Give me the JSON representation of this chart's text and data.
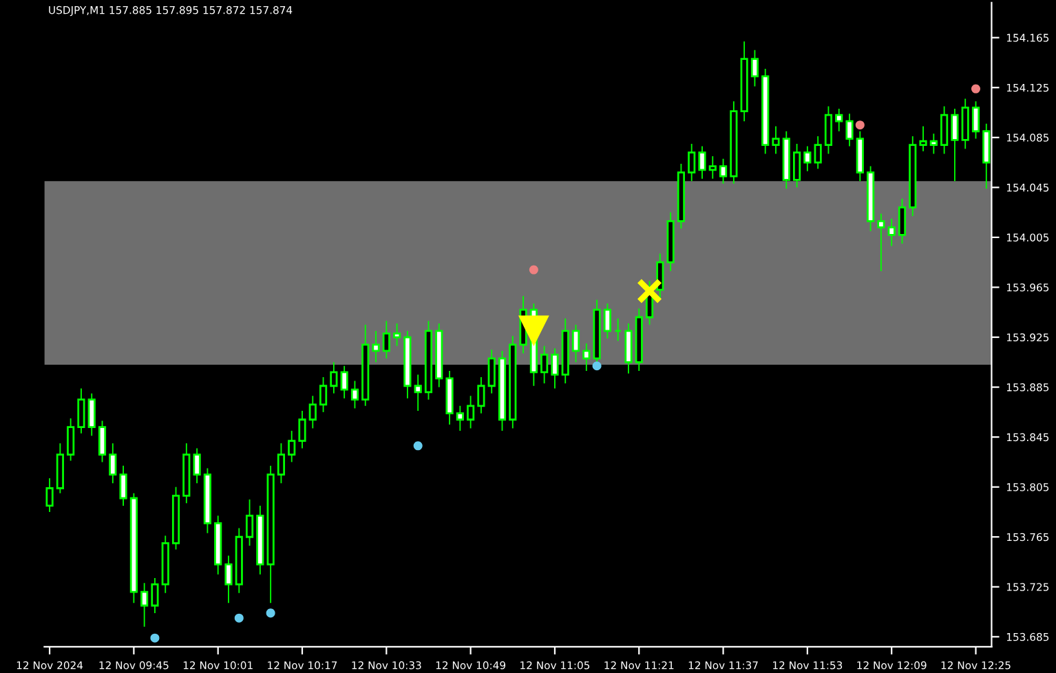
{
  "chart_data": {
    "type": "candlestick",
    "title": "USDJPY,M1 157.885 157.895 157.872 157.874",
    "color": "#00ff00",
    "categories": [
      "12 Nov 2024",
      null,
      null,
      null,
      null,
      null,
      null,
      null,
      "12 Nov 09:45",
      null,
      null,
      null,
      null,
      null,
      null,
      null,
      "12 Nov 10:01",
      null,
      null,
      null,
      null,
      null,
      null,
      null,
      "12 Nov 10:17",
      null,
      null,
      null,
      null,
      null,
      null,
      null,
      "12 Nov 10:33",
      null,
      null,
      null,
      null,
      null,
      null,
      null,
      "12 Nov 10:49",
      null,
      null,
      null,
      null,
      null,
      null,
      null,
      "12 Nov 11:05",
      null,
      null,
      null,
      null,
      null,
      null,
      null,
      "12 Nov 11:21",
      null,
      null,
      null,
      null,
      null,
      null,
      null,
      "12 Nov 11:37",
      null,
      null,
      null,
      null,
      null,
      null,
      null,
      "12 Nov 11:53",
      null,
      null,
      null,
      null,
      null,
      null,
      null,
      "12 Nov 12:09",
      null,
      null,
      null,
      null,
      null,
      null,
      null,
      "12 Nov 12:25",
      null
    ],
    "ohlc": [
      [
        153.79,
        153.812,
        153.785,
        153.804
      ],
      [
        153.804,
        153.84,
        153.8,
        153.831
      ],
      [
        153.831,
        153.86,
        153.826,
        153.853
      ],
      [
        153.853,
        153.884,
        153.848,
        153.875
      ],
      [
        153.875,
        153.88,
        153.846,
        153.853
      ],
      [
        153.853,
        153.858,
        153.825,
        153.831
      ],
      [
        153.831,
        153.84,
        153.808,
        153.815
      ],
      [
        153.815,
        153.822,
        153.79,
        153.796
      ],
      [
        153.796,
        153.8,
        153.712,
        153.721
      ],
      [
        153.721,
        153.728,
        153.693,
        153.71
      ],
      [
        153.71,
        153.732,
        153.704,
        153.727
      ],
      [
        153.727,
        153.766,
        153.72,
        153.76
      ],
      [
        153.76,
        153.805,
        153.755,
        153.798
      ],
      [
        153.798,
        153.84,
        153.792,
        153.831
      ],
      [
        153.831,
        153.836,
        153.808,
        153.815
      ],
      [
        153.815,
        153.82,
        153.768,
        153.776
      ],
      [
        153.776,
        153.782,
        153.735,
        153.743
      ],
      [
        153.743,
        153.75,
        153.712,
        153.727
      ],
      [
        153.727,
        153.772,
        153.72,
        153.765
      ],
      [
        153.765,
        153.795,
        153.758,
        153.782
      ],
      [
        153.782,
        153.79,
        153.735,
        153.743
      ],
      [
        153.743,
        153.822,
        153.712,
        153.815
      ],
      [
        153.815,
        153.84,
        153.808,
        153.831
      ],
      [
        153.831,
        153.85,
        153.825,
        153.842
      ],
      [
        153.842,
        153.866,
        153.836,
        153.859
      ],
      [
        153.859,
        153.878,
        153.852,
        153.871
      ],
      [
        153.871,
        153.893,
        153.865,
        153.886
      ],
      [
        153.886,
        153.905,
        153.88,
        153.897
      ],
      [
        153.897,
        153.902,
        153.876,
        153.883
      ],
      [
        153.883,
        153.89,
        153.868,
        153.875
      ],
      [
        153.875,
        153.935,
        153.87,
        153.919
      ],
      [
        153.919,
        153.93,
        153.905,
        153.914
      ],
      [
        153.914,
        153.938,
        153.908,
        153.928
      ],
      [
        153.928,
        153.936,
        153.918,
        153.925
      ],
      [
        153.925,
        153.93,
        153.876,
        153.886
      ],
      [
        153.886,
        153.895,
        153.866,
        153.881
      ],
      [
        153.881,
        153.938,
        153.875,
        153.93
      ],
      [
        153.93,
        153.936,
        153.885,
        153.892
      ],
      [
        153.892,
        153.898,
        153.855,
        153.864
      ],
      [
        153.864,
        153.87,
        153.85,
        153.859
      ],
      [
        153.859,
        153.878,
        153.852,
        153.87
      ],
      [
        153.87,
        153.893,
        153.864,
        153.886
      ],
      [
        153.886,
        153.915,
        153.88,
        153.908
      ],
      [
        153.908,
        153.914,
        153.85,
        153.859
      ],
      [
        153.859,
        153.926,
        153.852,
        153.919
      ],
      [
        153.919,
        153.958,
        153.912,
        153.947
      ],
      [
        153.947,
        153.952,
        153.886,
        153.897
      ],
      [
        153.897,
        153.918,
        153.888,
        153.911
      ],
      [
        153.911,
        153.916,
        153.884,
        153.895
      ],
      [
        153.895,
        153.94,
        153.888,
        153.93
      ],
      [
        153.93,
        153.935,
        153.905,
        153.914
      ],
      [
        153.914,
        153.92,
        153.898,
        153.908
      ],
      [
        153.908,
        153.955,
        153.902,
        153.947
      ],
      [
        153.947,
        153.952,
        153.924,
        153.93
      ],
      [
        153.93,
        153.94,
        153.922,
        153.93
      ],
      [
        153.93,
        153.936,
        153.896,
        153.905
      ],
      [
        153.905,
        153.948,
        153.898,
        153.941
      ],
      [
        153.941,
        153.97,
        153.935,
        153.963
      ],
      [
        153.963,
        153.992,
        153.956,
        153.985
      ],
      [
        153.985,
        154.025,
        153.978,
        154.018
      ],
      [
        154.018,
        154.064,
        154.012,
        154.057
      ],
      [
        154.057,
        154.08,
        154.05,
        154.073
      ],
      [
        154.073,
        154.078,
        154.052,
        154.059
      ],
      [
        154.059,
        154.07,
        154.052,
        154.062
      ],
      [
        154.062,
        154.068,
        154.048,
        154.054
      ],
      [
        154.054,
        154.114,
        154.048,
        154.106
      ],
      [
        154.106,
        154.162,
        154.098,
        154.148
      ],
      [
        154.148,
        154.155,
        154.126,
        154.134
      ],
      [
        154.134,
        154.14,
        154.072,
        154.079
      ],
      [
        154.079,
        154.094,
        154.072,
        154.084
      ],
      [
        154.084,
        154.09,
        154.044,
        154.051
      ],
      [
        154.051,
        154.08,
        154.045,
        154.073
      ],
      [
        154.073,
        154.078,
        154.058,
        154.065
      ],
      [
        154.065,
        154.086,
        154.06,
        154.079
      ],
      [
        154.079,
        154.11,
        154.072,
        154.103
      ],
      [
        154.103,
        154.108,
        154.09,
        154.098
      ],
      [
        154.098,
        154.104,
        154.078,
        154.084
      ],
      [
        154.084,
        154.09,
        154.05,
        154.057
      ],
      [
        154.057,
        154.062,
        154.01,
        154.018
      ],
      [
        154.018,
        154.024,
        153.978,
        154.013
      ],
      [
        154.013,
        154.02,
        153.998,
        154.007
      ],
      [
        154.007,
        154.036,
        154.0,
        154.029
      ],
      [
        154.029,
        154.086,
        154.022,
        154.079
      ],
      [
        154.079,
        154.094,
        154.074,
        154.082
      ],
      [
        154.082,
        154.088,
        154.072,
        154.079
      ],
      [
        154.079,
        154.11,
        154.072,
        154.103
      ],
      [
        154.103,
        154.108,
        154.05,
        154.083
      ],
      [
        154.083,
        154.116,
        154.076,
        154.109
      ],
      [
        154.109,
        154.114,
        154.084,
        154.09
      ],
      [
        154.09,
        154.096,
        154.044,
        154.065
      ]
    ],
    "series": [
      {
        "type": "scatter",
        "marker": "circle",
        "color": "#f08080",
        "values": [
          null,
          null,
          null,
          null,
          null,
          null,
          null,
          null,
          null,
          null,
          null,
          null,
          null,
          null,
          null,
          null,
          null,
          null,
          null,
          null,
          null,
          null,
          null,
          null,
          null,
          null,
          null,
          null,
          null,
          null,
          null,
          null,
          null,
          null,
          null,
          null,
          null,
          null,
          null,
          null,
          null,
          null,
          null,
          null,
          null,
          null,
          153.979,
          null,
          null,
          null,
          null,
          null,
          null,
          null,
          null,
          null,
          null,
          null,
          null,
          null,
          null,
          null,
          null,
          null,
          null,
          null,
          null,
          null,
          null,
          null,
          null,
          null,
          null,
          null,
          null,
          null,
          null,
          154.095,
          null,
          null,
          null,
          null,
          null,
          null,
          null,
          null,
          null,
          null,
          154.124,
          null
        ]
      },
      {
        "type": "scatter",
        "marker": "circle",
        "color": "#66ccee",
        "values": [
          null,
          null,
          null,
          null,
          null,
          null,
          null,
          null,
          null,
          null,
          153.684,
          null,
          null,
          null,
          null,
          null,
          null,
          null,
          153.7,
          null,
          null,
          153.704,
          null,
          null,
          null,
          null,
          null,
          null,
          null,
          null,
          null,
          null,
          null,
          null,
          null,
          153.838,
          null,
          null,
          null,
          null,
          null,
          null,
          null,
          null,
          null,
          null,
          null,
          null,
          null,
          null,
          null,
          null,
          153.902,
          null,
          null,
          null,
          null,
          null,
          null,
          null,
          null,
          null,
          null,
          null,
          null,
          null,
          null,
          null,
          null,
          null,
          null,
          null,
          null,
          null,
          null,
          null,
          null,
          null,
          null,
          null,
          null,
          null,
          null,
          null,
          null,
          null,
          null,
          null,
          null,
          null
        ]
      },
      {
        "type": "scatter",
        "marker": "triangle",
        "color": "#ffff00",
        "values": [
          null,
          null,
          null,
          null,
          null,
          null,
          null,
          null,
          null,
          null,
          null,
          null,
          null,
          null,
          null,
          null,
          null,
          null,
          null,
          null,
          null,
          null,
          null,
          null,
          null,
          null,
          null,
          null,
          null,
          null,
          null,
          null,
          null,
          null,
          null,
          null,
          null,
          null,
          null,
          null,
          null,
          null,
          null,
          null,
          null,
          null,
          153.93,
          null,
          null,
          null,
          null,
          null,
          null,
          null,
          null,
          null,
          null,
          null,
          null,
          null,
          null,
          null,
          null,
          null,
          null,
          null,
          null,
          null,
          null,
          null,
          null,
          null,
          null,
          null,
          null,
          null,
          null,
          null,
          null,
          null,
          null,
          null,
          null,
          null,
          null,
          null,
          null,
          null,
          null,
          null
        ]
      },
      {
        "type": "scatter",
        "marker": "cross",
        "color": "#ffff00",
        "values": [
          null,
          null,
          null,
          null,
          null,
          null,
          null,
          null,
          null,
          null,
          null,
          null,
          null,
          null,
          null,
          null,
          null,
          null,
          null,
          null,
          null,
          null,
          null,
          null,
          null,
          null,
          null,
          null,
          null,
          null,
          null,
          null,
          null,
          null,
          null,
          null,
          null,
          null,
          null,
          null,
          null,
          null,
          null,
          null,
          null,
          null,
          null,
          null,
          null,
          null,
          null,
          null,
          null,
          null,
          null,
          null,
          null,
          153.962,
          null,
          null,
          null,
          null,
          null,
          null,
          null,
          null,
          null,
          null,
          null,
          null,
          null,
          null,
          null,
          null,
          null,
          null,
          null,
          null,
          null,
          null,
          null,
          null,
          null,
          null,
          null,
          null,
          null,
          null,
          null,
          null
        ]
      }
    ],
    "bands": [
      {
        "axis": "y",
        "from": 153.903,
        "to": 154.05,
        "color": "#6e6e6e"
      }
    ],
    "ylim": [
      153.677,
      154.193
    ],
    "yticks": [
      153.685,
      153.725,
      153.765,
      153.805,
      153.845,
      153.885,
      153.925,
      153.965,
      154.005,
      154.045,
      154.085,
      154.125,
      154.165
    ],
    "grid": false
  }
}
